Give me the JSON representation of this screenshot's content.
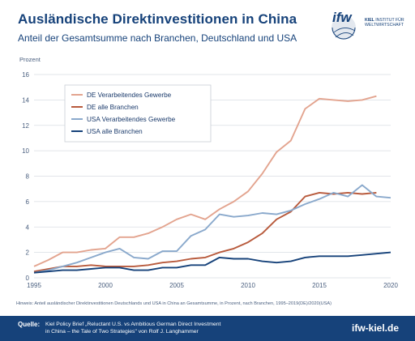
{
  "header": {
    "title": "Ausländische Direktinvestitionen in China",
    "subtitle": "Anteil der Gesamtsumme nach Branchen, Deutschland und USA"
  },
  "logo": {
    "mark": "ifw",
    "line1": "KIEL",
    "line1_rest": "INSTITUT FÜR",
    "line2": "WELTWIRTSCHAFT"
  },
  "note": "Hinweis: Anteil ausländischer Direktinvestitionen Deutschlands und USA in China an Gesamtsumme, in Prozent, nach Branchen, 1995–2019(DE)/2020(USA)",
  "footer": {
    "label": "Quelle:",
    "source_line1": "Kiel Policy Brief „Reluctant U.S. vs Ambitious German Direct Investment",
    "source_line2": "in China – the Tale of Two Strategies\" von Rolf J. Langhammer",
    "url": "ifw-kiel.de"
  },
  "colors": {
    "de_manufacturing": "#e3a48f",
    "de_all": "#b85a3c",
    "us_manufacturing": "#8aa9cc",
    "us_all": "#16427a",
    "grid": "#d9dde3",
    "brand": "#16427a"
  },
  "chart_data": {
    "type": "line",
    "title": "",
    "xlabel": "",
    "ylabel": "Prozent",
    "xlim": [
      1995,
      2020
    ],
    "ylim": [
      0,
      16
    ],
    "xticks": [
      1995,
      2000,
      2005,
      2010,
      2015,
      2020
    ],
    "yticks": [
      0,
      2,
      4,
      6,
      8,
      10,
      12,
      14,
      16
    ],
    "grid": true,
    "legend_position": "top-left",
    "series": [
      {
        "name": "DE Verarbeitendes Gewerbe",
        "color_key": "de_manufacturing",
        "x": [
          1995,
          1996,
          1997,
          1998,
          1999,
          2000,
          2001,
          2002,
          2003,
          2004,
          2005,
          2006,
          2007,
          2008,
          2009,
          2010,
          2011,
          2012,
          2013,
          2014,
          2015,
          2016,
          2017,
          2018,
          2019
        ],
        "values": [
          0.9,
          1.4,
          2.0,
          2.0,
          2.2,
          2.3,
          3.2,
          3.2,
          3.5,
          4.0,
          4.6,
          5.0,
          4.6,
          5.4,
          6.0,
          6.8,
          8.2,
          9.9,
          10.8,
          13.3,
          14.1,
          14.0,
          13.9,
          14.0,
          14.3
        ]
      },
      {
        "name": "DE alle Branchen",
        "color_key": "de_all",
        "x": [
          1995,
          1996,
          1997,
          1998,
          1999,
          2000,
          2001,
          2002,
          2003,
          2004,
          2005,
          2006,
          2007,
          2008,
          2009,
          2010,
          2011,
          2012,
          2013,
          2014,
          2015,
          2016,
          2017,
          2018,
          2019
        ],
        "values": [
          0.5,
          0.7,
          0.9,
          0.9,
          1.0,
          0.9,
          0.9,
          0.9,
          1.0,
          1.2,
          1.3,
          1.5,
          1.6,
          2.0,
          2.3,
          2.8,
          3.5,
          4.6,
          5.2,
          6.4,
          6.7,
          6.6,
          6.7,
          6.6,
          6.7
        ]
      },
      {
        "name": "USA Verarbeitendes Gewerbe",
        "color_key": "us_manufacturing",
        "x": [
          1995,
          1996,
          1997,
          1998,
          1999,
          2000,
          2001,
          2002,
          2003,
          2004,
          2005,
          2006,
          2007,
          2008,
          2009,
          2010,
          2011,
          2012,
          2013,
          2014,
          2015,
          2016,
          2017,
          2018,
          2019,
          2020
        ],
        "values": [
          0.4,
          0.6,
          0.9,
          1.2,
          1.6,
          2.0,
          2.3,
          1.6,
          1.5,
          2.1,
          2.1,
          3.3,
          3.8,
          5.0,
          4.8,
          4.9,
          5.1,
          5.0,
          5.3,
          5.8,
          6.2,
          6.7,
          6.4,
          7.3,
          6.4,
          6.3
        ]
      },
      {
        "name": "USA alle Branchen",
        "color_key": "us_all",
        "x": [
          1995,
          1996,
          1997,
          1998,
          1999,
          2000,
          2001,
          2002,
          2003,
          2004,
          2005,
          2006,
          2007,
          2008,
          2009,
          2010,
          2011,
          2012,
          2013,
          2014,
          2015,
          2016,
          2017,
          2018,
          2019,
          2020
        ],
        "values": [
          0.4,
          0.5,
          0.6,
          0.6,
          0.7,
          0.8,
          0.8,
          0.6,
          0.6,
          0.8,
          0.8,
          1.0,
          1.0,
          1.6,
          1.5,
          1.5,
          1.3,
          1.2,
          1.3,
          1.6,
          1.7,
          1.7,
          1.7,
          1.8,
          1.9,
          2.0
        ]
      }
    ]
  }
}
